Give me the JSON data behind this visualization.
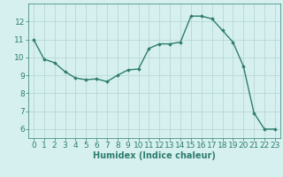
{
  "x": [
    0,
    1,
    2,
    3,
    4,
    5,
    6,
    7,
    8,
    9,
    10,
    11,
    12,
    13,
    14,
    15,
    16,
    17,
    18,
    19,
    20,
    21,
    22,
    23
  ],
  "y": [
    11.0,
    9.9,
    9.7,
    9.2,
    8.85,
    8.75,
    8.8,
    8.65,
    9.0,
    9.3,
    9.35,
    10.5,
    10.75,
    10.75,
    10.85,
    12.3,
    12.3,
    12.15,
    11.5,
    10.85,
    9.5,
    6.9,
    6.0,
    6.0
  ],
  "line_color": "#2e7d6e",
  "marker": "D",
  "marker_size": 1.8,
  "bg_color": "#d6f0ef",
  "grid_color": "#b8d8d5",
  "xlabel": "Humidex (Indice chaleur)",
  "xlabel_color": "#2e7d6e",
  "tick_color": "#2e7d6e",
  "ylim": [
    5.5,
    13.0
  ],
  "xlim": [
    -0.5,
    23.5
  ],
  "yticks": [
    6,
    7,
    8,
    9,
    10,
    11,
    12
  ],
  "xticks": [
    0,
    1,
    2,
    3,
    4,
    5,
    6,
    7,
    8,
    9,
    10,
    11,
    12,
    13,
    14,
    15,
    16,
    17,
    18,
    19,
    20,
    21,
    22,
    23
  ],
  "linewidth": 1.0,
  "font_size": 6.5
}
